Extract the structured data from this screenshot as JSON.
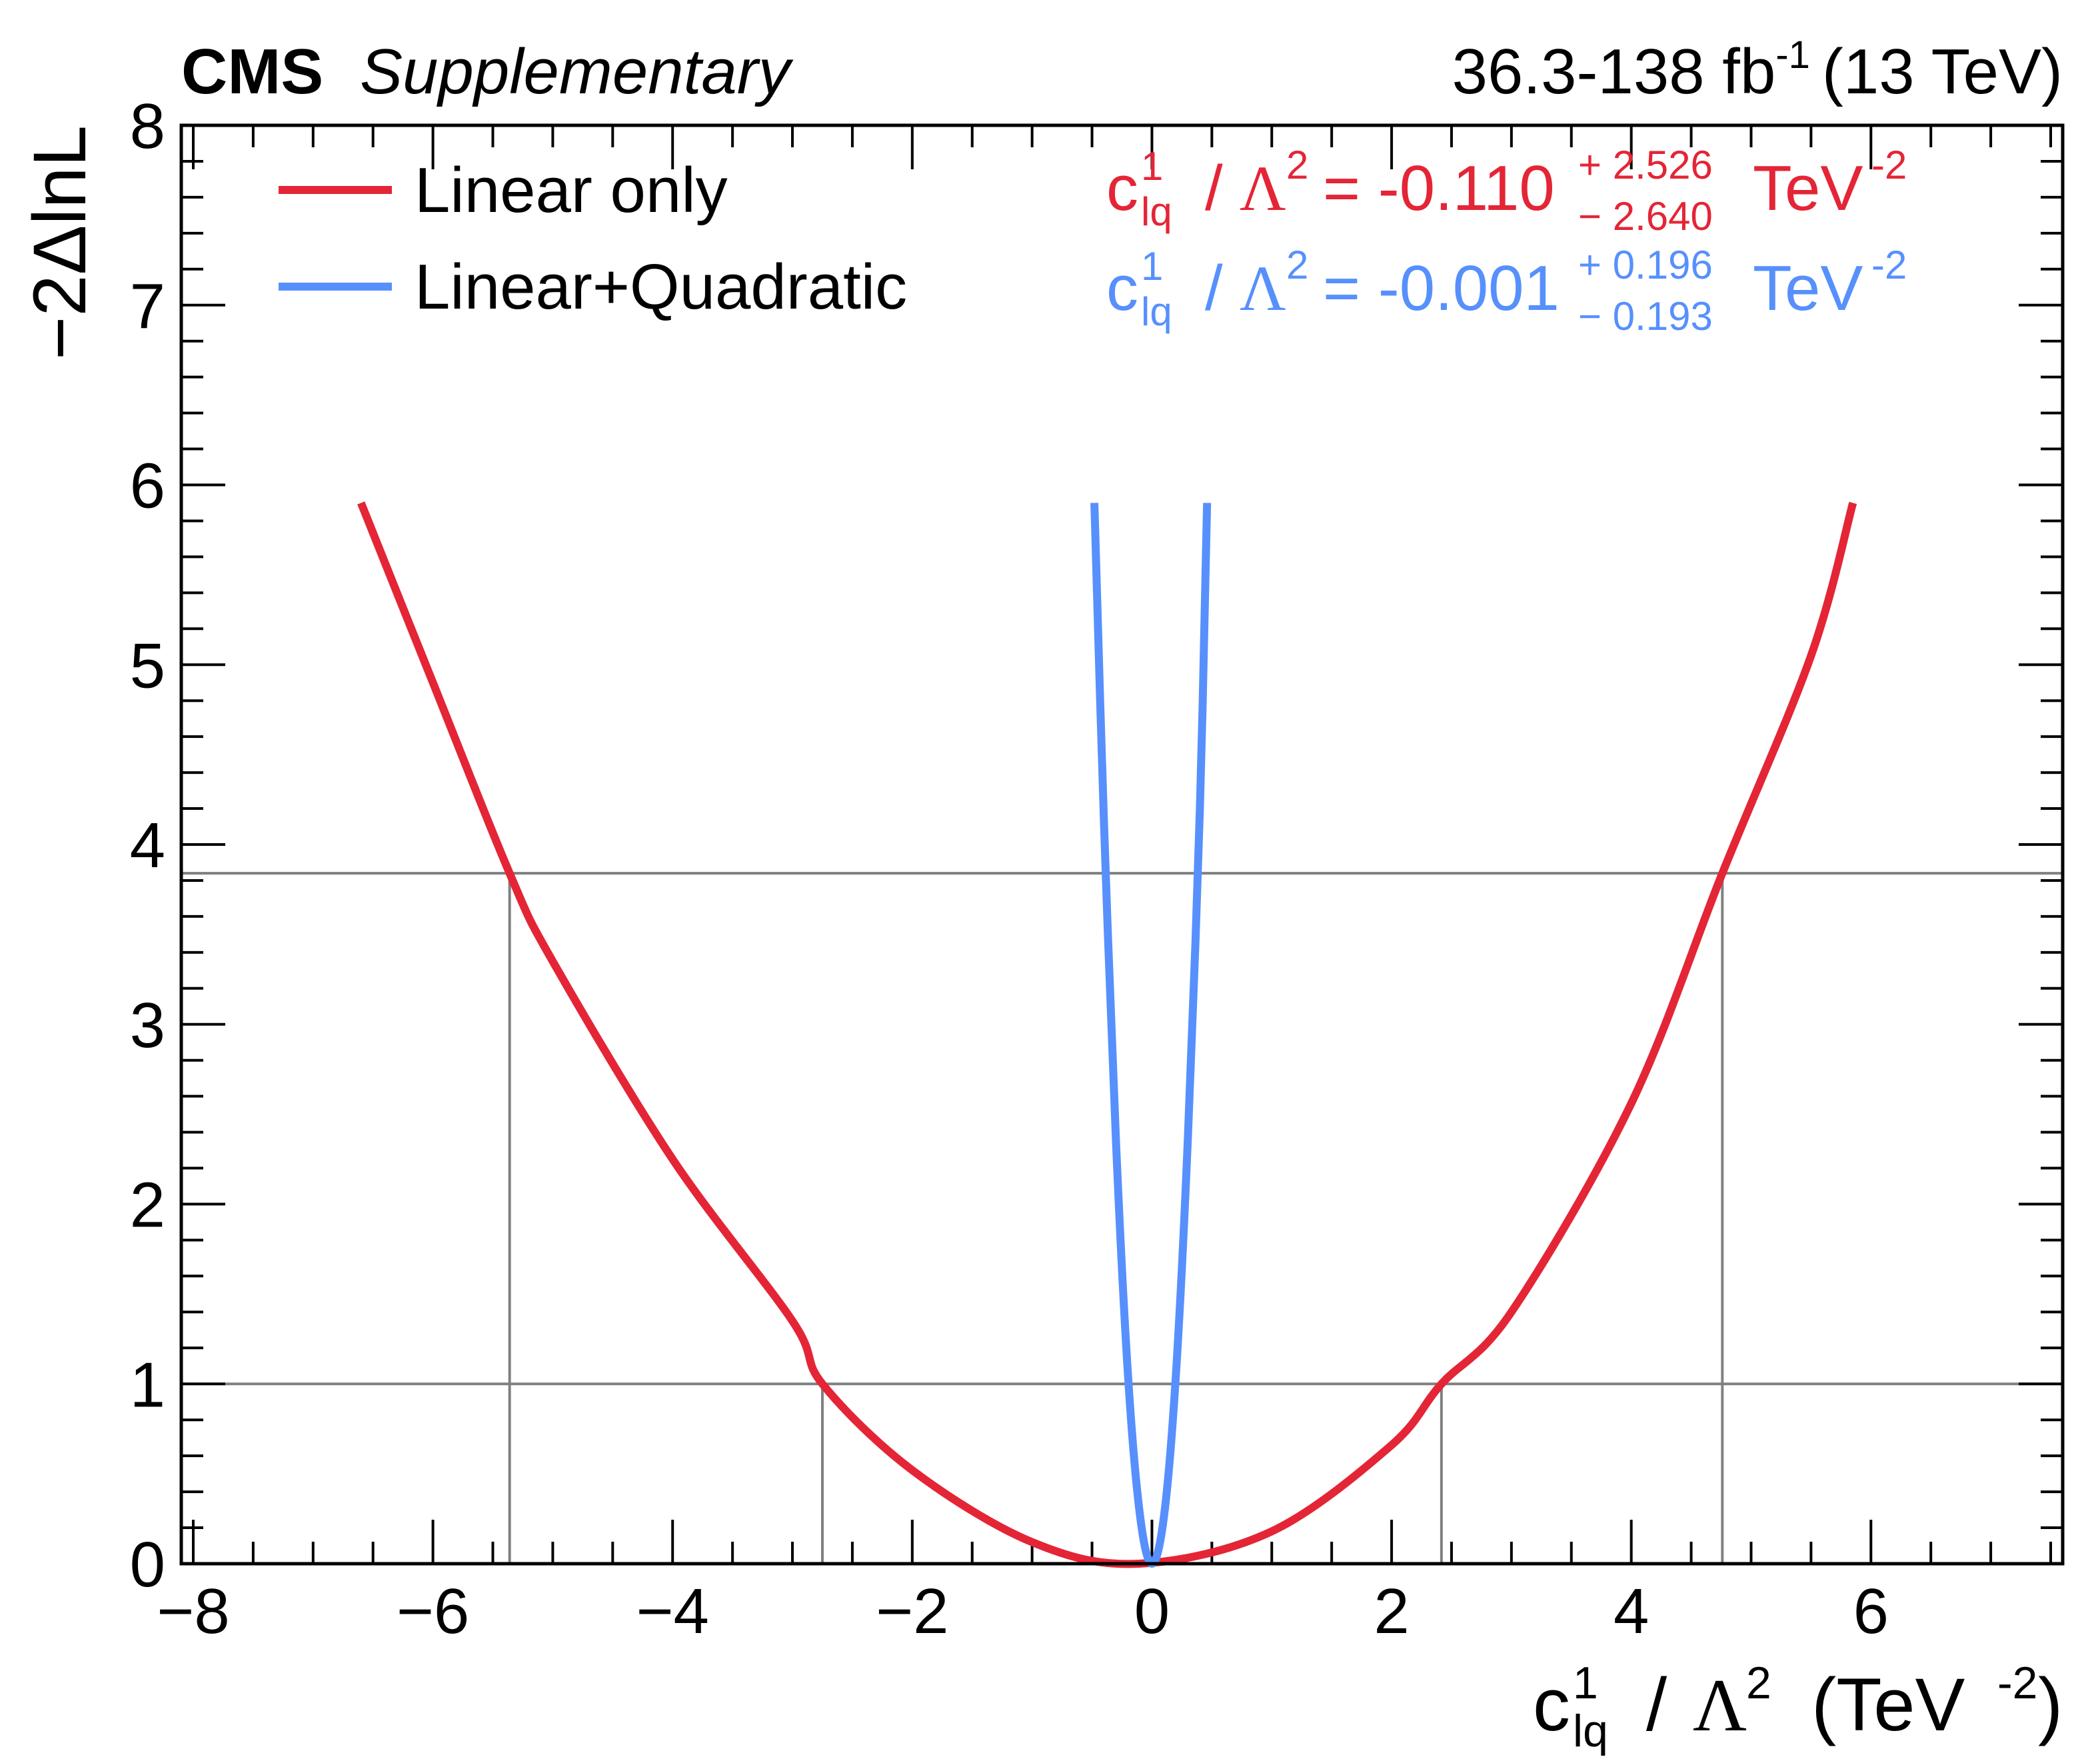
{
  "header": {
    "experiment": "CMS",
    "label": "Supplementary",
    "lumi_value": "36.3-138 fb",
    "lumi_exp": "-1",
    "energy": "(13 TeV)"
  },
  "legend": {
    "items": [
      {
        "label": "Linear only",
        "color": "#e42536"
      },
      {
        "label": "Linear+Quadratic",
        "color": "#5790fc"
      }
    ]
  },
  "results": [
    {
      "coef": "c",
      "sup": "1",
      "sub": "lq",
      "slash": "/",
      "lambda": "Λ",
      "lambda_pow": "2",
      "eq": "= -0.110",
      "up": "+ 2.526",
      "down": "− 2.640",
      "unit": "TeV",
      "unit_exp": "-2",
      "color": "#e42536"
    },
    {
      "coef": "c",
      "sup": "1",
      "sub": "lq",
      "slash": "/",
      "lambda": "Λ",
      "lambda_pow": "2",
      "eq": "= -0.001",
      "up": "+ 0.196",
      "down": "− 0.193",
      "unit": "TeV",
      "unit_exp": "-2",
      "color": "#5790fc"
    }
  ],
  "axes": {
    "ylabel": "−2ΔlnL",
    "xlabel": {
      "coef": "c",
      "sup": "1",
      "sub": "lq",
      "slash": "/",
      "lambda": "Λ",
      "lambda_pow": "2",
      "paren_open": "(TeV",
      "unit_exp": "-2",
      "paren_close": ")"
    }
  },
  "chart_data": {
    "type": "line",
    "xlim": [
      -8.1,
      7.6
    ],
    "ylim": [
      0,
      8
    ],
    "xticks": [
      {
        "value": -8,
        "label": "−8"
      },
      {
        "value": -6,
        "label": "−6"
      },
      {
        "value": -4,
        "label": "−4"
      },
      {
        "value": -2,
        "label": "−2"
      },
      {
        "value": 0,
        "label": "0"
      },
      {
        "value": 2,
        "label": "2"
      },
      {
        "value": 4,
        "label": "4"
      },
      {
        "value": 6,
        "label": "6"
      }
    ],
    "yticks": [
      {
        "value": 0,
        "label": "0"
      },
      {
        "value": 1,
        "label": "1"
      },
      {
        "value": 2,
        "label": "2"
      },
      {
        "value": 3,
        "label": "3"
      },
      {
        "value": 4,
        "label": "4"
      },
      {
        "value": 5,
        "label": "5"
      },
      {
        "value": 6,
        "label": "6"
      },
      {
        "value": 7,
        "label": "7"
      },
      {
        "value": 8,
        "label": "8"
      }
    ],
    "series": [
      {
        "name": "Linear only",
        "color": "#e42536",
        "minimum": -0.11,
        "x": [
          -6.6,
          -6.0,
          -5.36,
          -5.0,
          -4.0,
          -3.0,
          -2.75,
          -2.0,
          -1.0,
          -0.11,
          1.0,
          2.0,
          2.416,
          3.0,
          4.0,
          4.76,
          5.5,
          5.85
        ],
        "y": [
          5.9,
          4.9,
          3.84,
          3.35,
          2.25,
          1.35,
          1.0,
          0.52,
          0.12,
          0.0,
          0.18,
          0.66,
          1.0,
          1.4,
          2.56,
          3.84,
          5.05,
          5.9
        ]
      },
      {
        "name": "Linear+Quadratic",
        "color": "#5790fc",
        "minimum": -0.001,
        "x": [
          -0.48,
          -0.4,
          -0.3,
          -0.2,
          -0.1,
          -0.001,
          0.1,
          0.2,
          0.3,
          0.4,
          0.46
        ],
        "y": [
          5.9,
          4.12,
          2.35,
          1.05,
          0.27,
          0.0,
          0.26,
          1.05,
          2.37,
          4.2,
          5.9
        ]
      }
    ],
    "reference_lines": [
      {
        "y": 1.0,
        "x_crossings": [
          -2.75,
          2.416
        ]
      },
      {
        "y": 3.84,
        "x_crossings": [
          -5.36,
          4.76
        ]
      }
    ]
  }
}
